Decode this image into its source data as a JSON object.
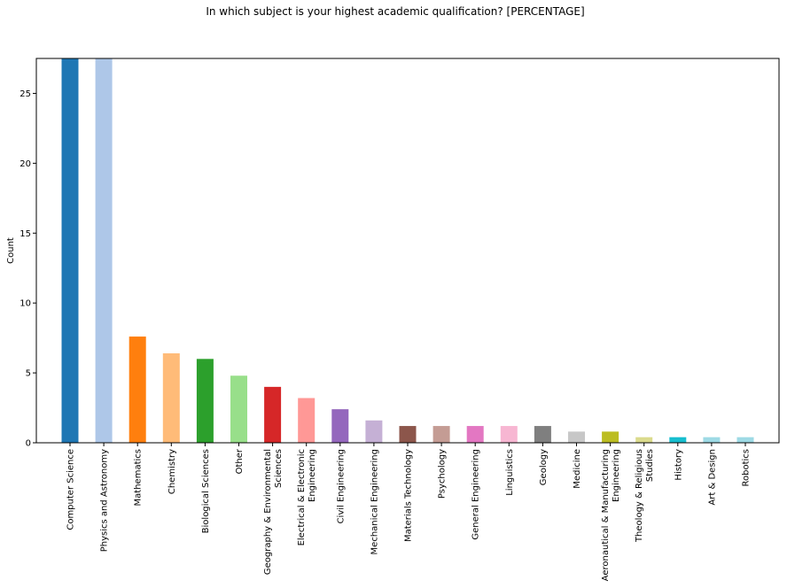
{
  "chart_data": {
    "type": "bar",
    "title": "In which subject is your highest academic qualification? [PERCENTAGE]",
    "xlabel": "",
    "ylabel": "Count",
    "ylim": [
      0,
      27.5
    ],
    "yticks": [
      0,
      5,
      10,
      15,
      20,
      25
    ],
    "grid": false,
    "categories": [
      [
        "Computer Science"
      ],
      [
        "Physics and Astronomy"
      ],
      [
        "Mathematics"
      ],
      [
        "Chemistry"
      ],
      [
        "Biological Sciences"
      ],
      [
        "Other"
      ],
      [
        "Geography & Environmental",
        "Sciences"
      ],
      [
        "Electrical & Electronic",
        "Engineering"
      ],
      [
        "Civil Engineering"
      ],
      [
        "Mechanical Engineering"
      ],
      [
        "Materials Technology"
      ],
      [
        "Psychology"
      ],
      [
        "General Engineering"
      ],
      [
        "Linguistics"
      ],
      [
        "Geology"
      ],
      [
        "Medicine"
      ],
      [
        "Aeronautical & Manufacturing",
        "Engineering"
      ],
      [
        "Theology & Religious",
        "Studies"
      ],
      [
        "History"
      ],
      [
        "Art & Design"
      ],
      [
        "Robotics"
      ]
    ],
    "values": [
      27.5,
      27.5,
      7.6,
      6.4,
      6.0,
      4.8,
      4.0,
      3.2,
      2.4,
      1.6,
      1.2,
      1.2,
      1.2,
      1.2,
      1.2,
      0.8,
      0.8,
      0.4,
      0.4,
      0.4,
      0.4
    ],
    "colors": [
      "#1f77b4",
      "#aec7e8",
      "#ff7f0e",
      "#ffbb78",
      "#2ca02c",
      "#98df8a",
      "#d62728",
      "#ff9896",
      "#9467bd",
      "#c5b0d5",
      "#8c564b",
      "#c49c94",
      "#e377c2",
      "#f7b6d2",
      "#7f7f7f",
      "#c7c7c7",
      "#bcbd22",
      "#dbdb8d",
      "#17becf",
      "#9edae5",
      "#9edae5"
    ]
  }
}
